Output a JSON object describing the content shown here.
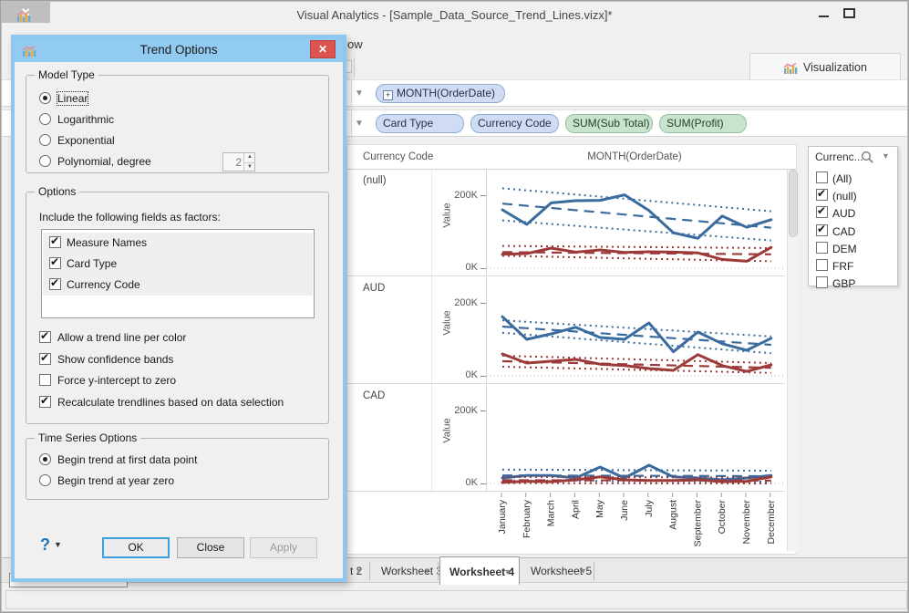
{
  "window": {
    "title": "Visual Analytics - [Sample_Data_Source_Trend_Lines.vizx]*",
    "menu_fragment": "ow",
    "visualization_tab": "Visualization",
    "controls": {
      "minimize": "minimize",
      "maximize": "maximize",
      "close": "✕"
    }
  },
  "shelves": {
    "rows": [
      {
        "pills": [
          {
            "label": "MONTH(OrderDate)",
            "kind": "dimension",
            "expander": "+",
            "fixed": false
          }
        ]
      },
      {
        "pills": [
          {
            "label": "Card Type",
            "kind": "dimension",
            "fixed": true
          },
          {
            "label": "Currency Code",
            "kind": "dimension",
            "fixed": true
          },
          {
            "label": "SUM(Sub Total)",
            "kind": "measure"
          },
          {
            "label": "SUM(Profit)",
            "kind": "measure"
          }
        ]
      }
    ]
  },
  "filter": {
    "title": "Currenc...",
    "items": [
      {
        "label": "(All)",
        "checked": false
      },
      {
        "label": "(null)",
        "checked": true
      },
      {
        "label": "AUD",
        "checked": true
      },
      {
        "label": "CAD",
        "checked": true
      },
      {
        "label": "DEM",
        "checked": false
      },
      {
        "label": "FRF",
        "checked": false
      },
      {
        "label": "GBP",
        "checked": false
      }
    ]
  },
  "chart_data": {
    "type": "line",
    "title": "MONTH(OrderDate)",
    "row_header": "Currency Code",
    "ylabel": "Value",
    "yticks": [
      "200K",
      "0K"
    ],
    "ylim": [
      0,
      260
    ],
    "unit": "K",
    "grid": "zero-line-dotted",
    "x": [
      "January",
      "February",
      "March",
      "April",
      "May",
      "June",
      "July",
      "August",
      "September",
      "October",
      "November",
      "December"
    ],
    "panels": [
      {
        "label": "(null)",
        "series": [
          {
            "name": "blue",
            "color": "#3a6b9e",
            "values": [
              160,
              120,
              179,
              185,
              186,
              201,
              158,
              97,
              82,
              143,
              112,
              133
            ],
            "trend": [
              177,
              111
            ],
            "band_upper": [
              219,
              156
            ],
            "band_lower": [
              131,
              76
            ]
          },
          {
            "name": "red",
            "color": "#9c3a39",
            "values": [
              38,
              40,
              55,
              44,
              50,
              43,
              45,
              44,
              42,
              24,
              19,
              57
            ],
            "trend": [
              44,
              38
            ],
            "band_upper": [
              61,
              55
            ],
            "band_lower": [
              34,
              19
            ]
          }
        ]
      },
      {
        "label": "AUD",
        "series": [
          {
            "name": "blue",
            "color": "#3a6b9e",
            "values": [
              162,
              100,
              115,
              133,
              105,
              100,
              145,
              66,
              120,
              88,
              70,
              103
            ],
            "trend": [
              135,
              85
            ],
            "band_upper": [
              152,
              108
            ],
            "band_lower": [
              118,
              62
            ]
          },
          {
            "name": "red",
            "color": "#9c3a39",
            "values": [
              60,
              35,
              40,
              45,
              32,
              28,
              20,
              15,
              58,
              28,
              12,
              30
            ],
            "trend": [
              40,
              22
            ],
            "band_upper": [
              55,
              35
            ],
            "band_lower": [
              25,
              8
            ]
          }
        ]
      },
      {
        "label": "CAD",
        "series": [
          {
            "name": "blue",
            "color": "#3a6b9e",
            "values": [
              15,
              22,
              22,
              15,
              45,
              15,
              50,
              18,
              15,
              10,
              15,
              22
            ],
            "trend": [
              22,
              20
            ],
            "band_upper": [
              38,
              35
            ],
            "band_lower": [
              8,
              5
            ]
          },
          {
            "name": "red",
            "color": "#9c3a39",
            "values": [
              3,
              6,
              5,
              10,
              18,
              10,
              8,
              8,
              10,
              5,
              6,
              18
            ],
            "trend": [
              9,
              8
            ],
            "band_upper": [
              18,
              16
            ],
            "band_lower": [
              1,
              0
            ]
          }
        ]
      }
    ]
  },
  "worksheet_tabs": [
    {
      "label": "t 2",
      "partial": true,
      "active": false
    },
    {
      "label": "Worksheet 3",
      "active": false
    },
    {
      "label": "Worksheet 4",
      "active": true
    },
    {
      "label": "Worksheet 5",
      "active": false
    }
  ],
  "dialog": {
    "title": "Trend Options",
    "close": "✕",
    "model_type": {
      "legend": "Model Type",
      "options": [
        {
          "label": "Linear",
          "selected": true
        },
        {
          "label": "Logarithmic",
          "selected": false
        },
        {
          "label": "Exponential",
          "selected": false
        },
        {
          "label": "Polynomial, degree",
          "selected": false,
          "spinner": "2"
        }
      ]
    },
    "options": {
      "legend": "Options",
      "factors_label": "Include the following fields as factors:",
      "factors": [
        {
          "label": "Measure Names",
          "checked": true
        },
        {
          "label": "Card Type",
          "checked": true
        },
        {
          "label": "Currency Code",
          "checked": true
        }
      ],
      "checkboxes": [
        {
          "label": "Allow a trend line per color",
          "checked": true
        },
        {
          "label": "Show confidence bands",
          "checked": true
        },
        {
          "label": "Force y-intercept to zero",
          "checked": false
        },
        {
          "label": "Recalculate trendlines based on data selection",
          "checked": true
        }
      ]
    },
    "time_series": {
      "legend": "Time Series Options",
      "options": [
        {
          "label": "Begin trend at first data point",
          "selected": true
        },
        {
          "label": "Begin trend at year zero",
          "selected": false
        }
      ]
    },
    "help": "?",
    "buttons": {
      "ok": "OK",
      "close": "Close",
      "apply": "Apply"
    }
  },
  "colors": {
    "dialog_blue": "#8cc7f0",
    "titlebar_blue": "#92cbf1",
    "close_red": "#dd5350",
    "line_blue": "#3a6b9e",
    "line_red": "#9c3a39",
    "pill_dimension": "#cfdcf3",
    "pill_measure": "#c9e3ce",
    "default_button_border": "#3e9ddd"
  }
}
